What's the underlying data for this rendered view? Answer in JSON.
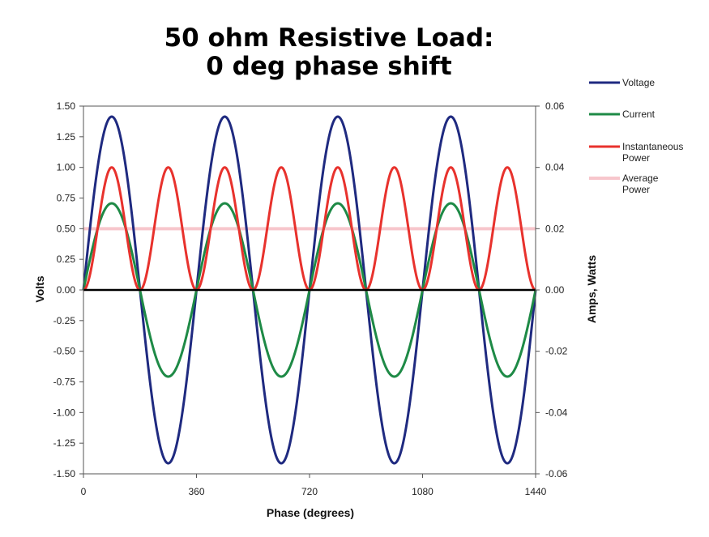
{
  "chart_data": {
    "type": "line",
    "title": [
      "50 ohm Resistive Load:",
      "0 deg phase shift"
    ],
    "xlabel": "Phase (degrees)",
    "ylabel_left": "Volts",
    "ylabel_right": "Amps, Watts",
    "xlim": [
      0,
      1440
    ],
    "ylim_left": [
      -1.5,
      1.5
    ],
    "ylim_right": [
      -0.06,
      0.06
    ],
    "x_ticks": [
      "0",
      "360",
      "720",
      "1080",
      "1440"
    ],
    "y_ticks_left": [
      "1.50",
      "1.25",
      "1.00",
      "0.75",
      "0.50",
      "0.25",
      "0.00",
      "-0.25",
      "-0.50",
      "-0.75",
      "-1.00",
      "-1.25",
      "-1.50"
    ],
    "y_ticks_right": [
      "0.06",
      "0.04",
      "0.02",
      "0.00",
      "-0.02",
      "-0.04",
      "-0.06"
    ],
    "grid": false,
    "legend_position": "right",
    "series": [
      {
        "name": "Voltage",
        "axis": "left",
        "color": "#1f2a80",
        "function": "1.414 * sin(x)"
      },
      {
        "name": "Current",
        "axis": "right",
        "color": "#1e8a46",
        "function": "0.02828 * sin(x)"
      },
      {
        "name": "Instantaneous Power",
        "axis": "right",
        "color": "#e8322d",
        "function": "0.04 * sin(x)^2"
      },
      {
        "name": "Average Power",
        "axis": "right",
        "color": "#f7c6cc",
        "function": "0.02"
      }
    ]
  }
}
